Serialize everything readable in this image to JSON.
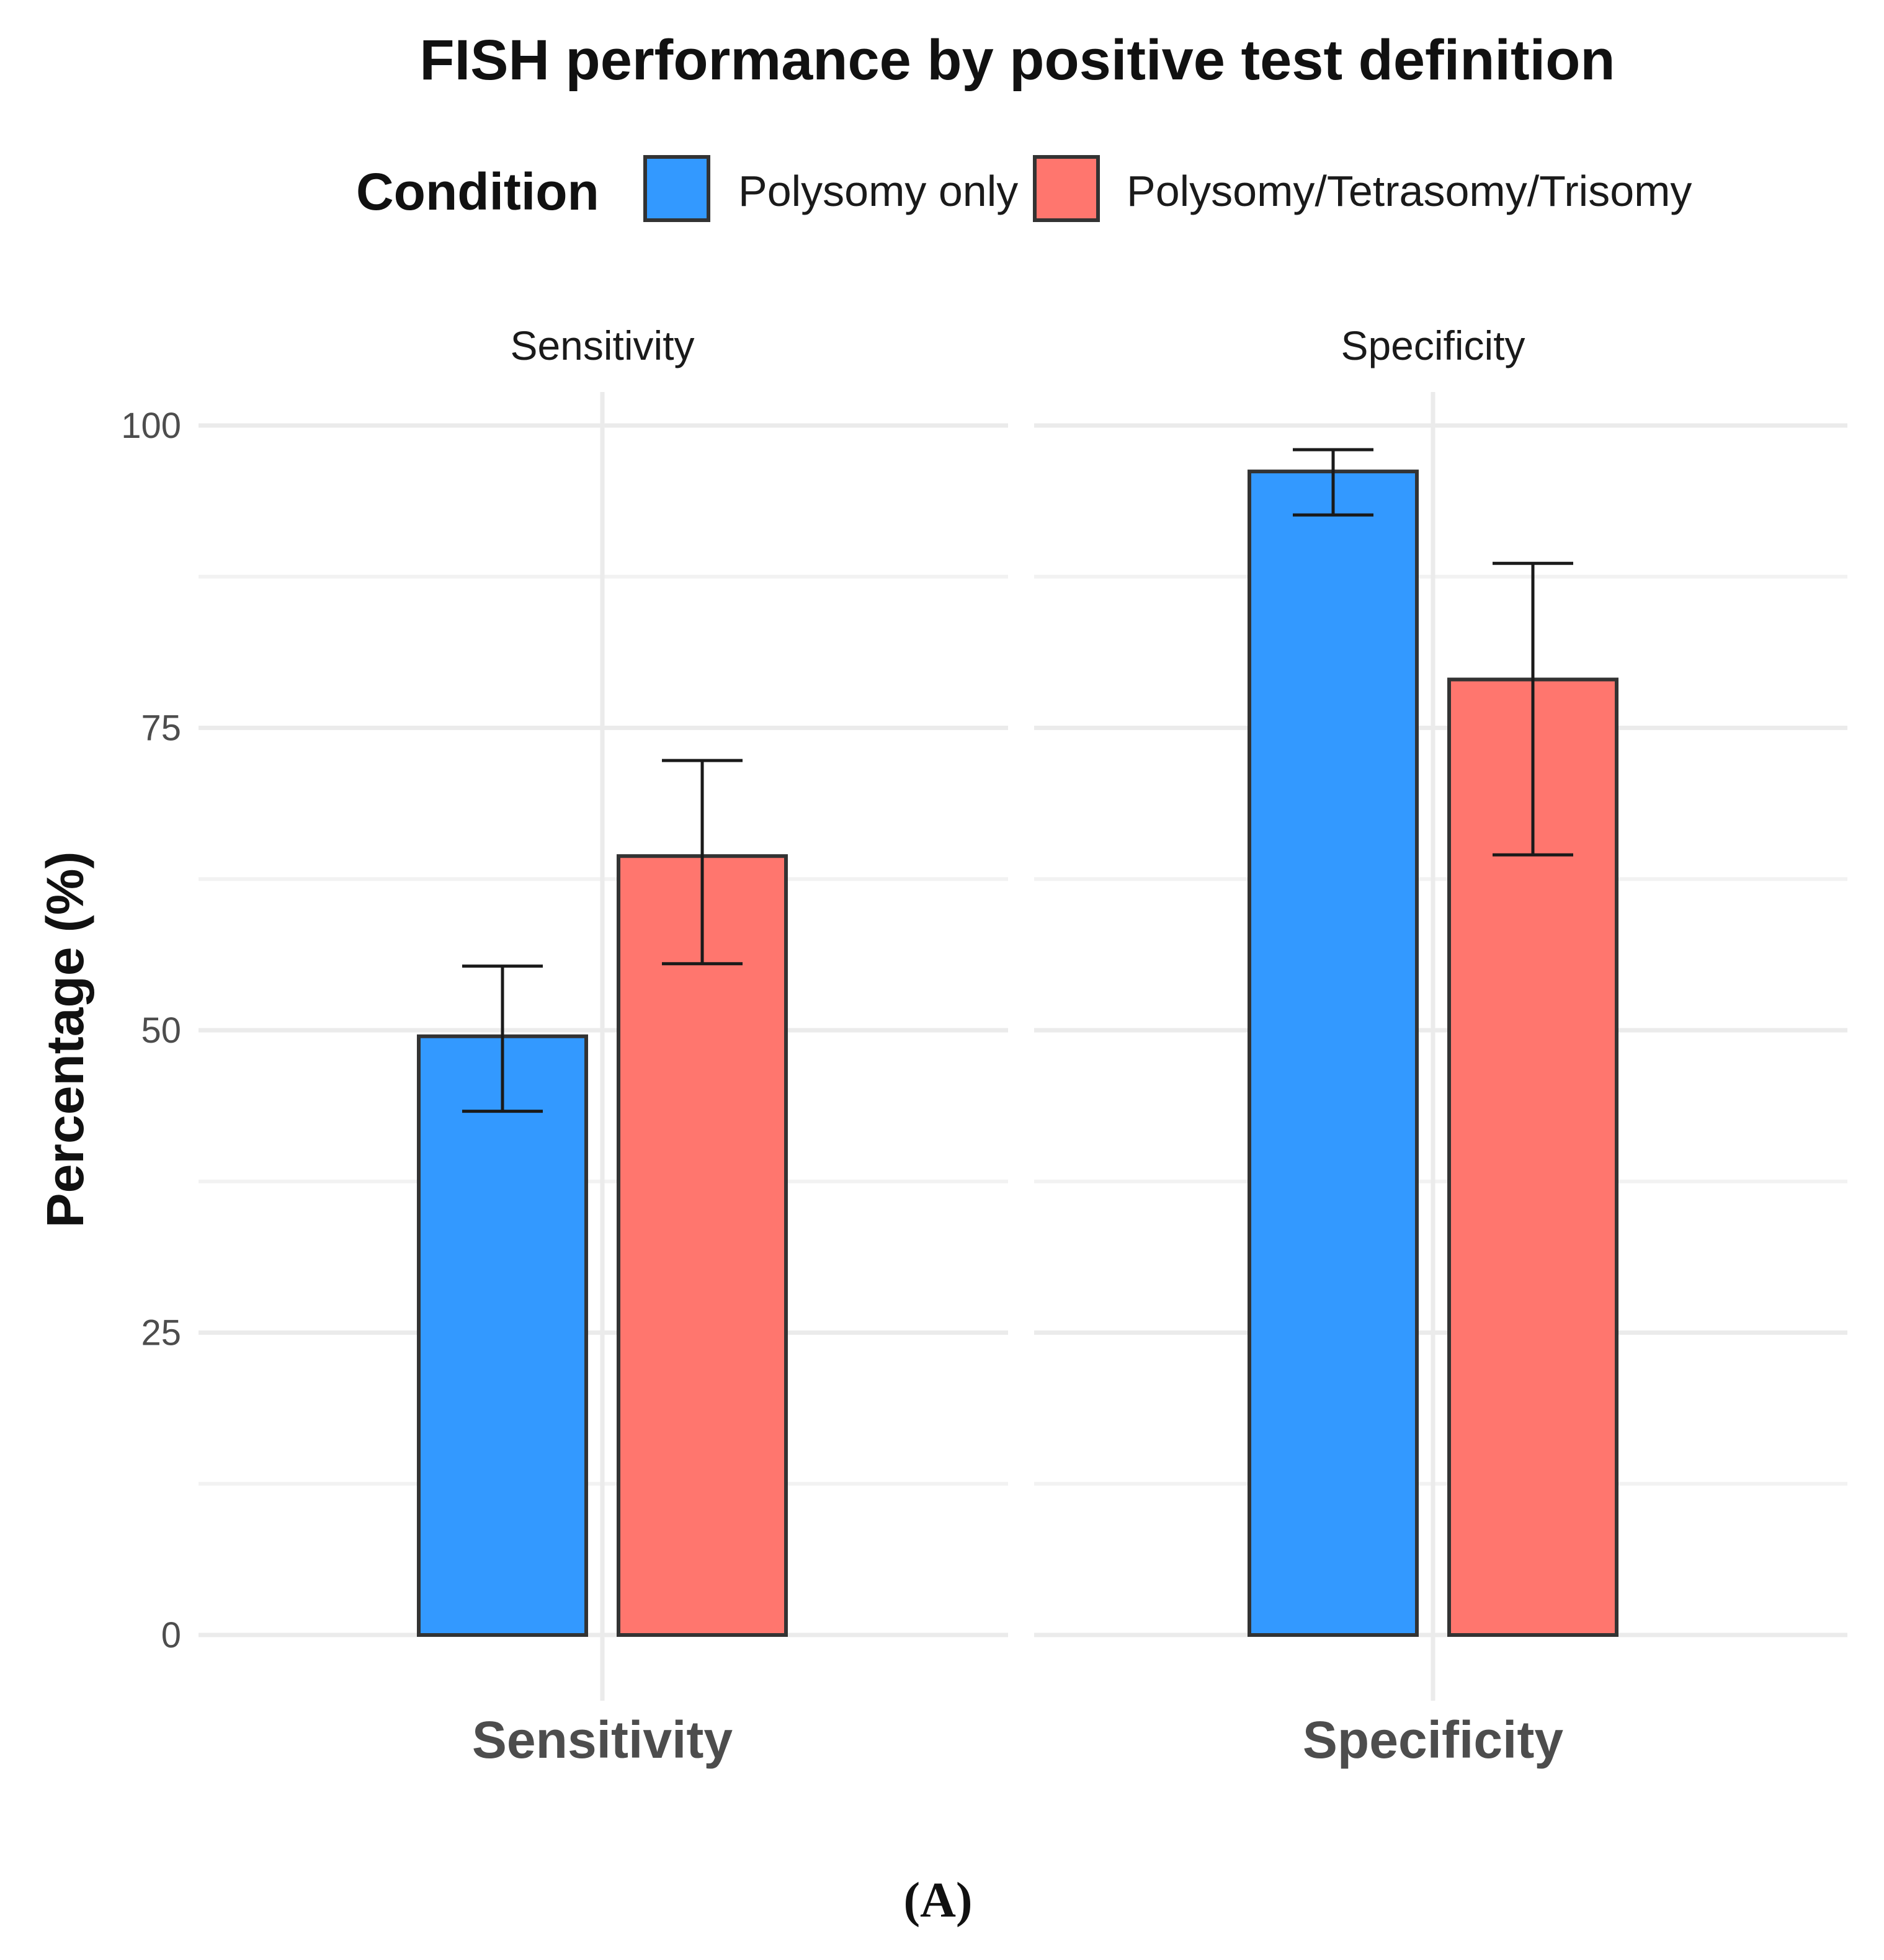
{
  "chart_data": {
    "type": "bar",
    "title": "FISH performance by positive test definition",
    "panel_label": "(A)",
    "legend": {
      "title": "Condition",
      "position": "top",
      "entries": [
        {
          "name": "Polysomy only",
          "color": "#3399FF"
        },
        {
          "name": "Polysomy/Tetrasomy/Trisomy",
          "color": "#FF766E"
        }
      ]
    },
    "facets": [
      "Sensitivity",
      "Specificity"
    ],
    "xlabel": "",
    "ylabel": "Percentage (%)",
    "ylim": [
      0,
      100
    ],
    "yticks": [
      0,
      25,
      50,
      75,
      100
    ],
    "yticks_minor": [
      12.5,
      37.5,
      62.5,
      87.5
    ],
    "series": [
      {
        "name": "Polysomy only",
        "color": "#3399FF",
        "values": [
          49.5,
          96.2
        ],
        "ci_low": [
          43.3,
          92.6
        ],
        "ci_high": [
          55.3,
          98.0
        ]
      },
      {
        "name": "Polysomy/Tetrasomy/Trisomy",
        "color": "#FF766E",
        "values": [
          64.4,
          79.0
        ],
        "ci_low": [
          55.5,
          64.5
        ],
        "ci_high": [
          72.3,
          88.6
        ]
      }
    ]
  }
}
